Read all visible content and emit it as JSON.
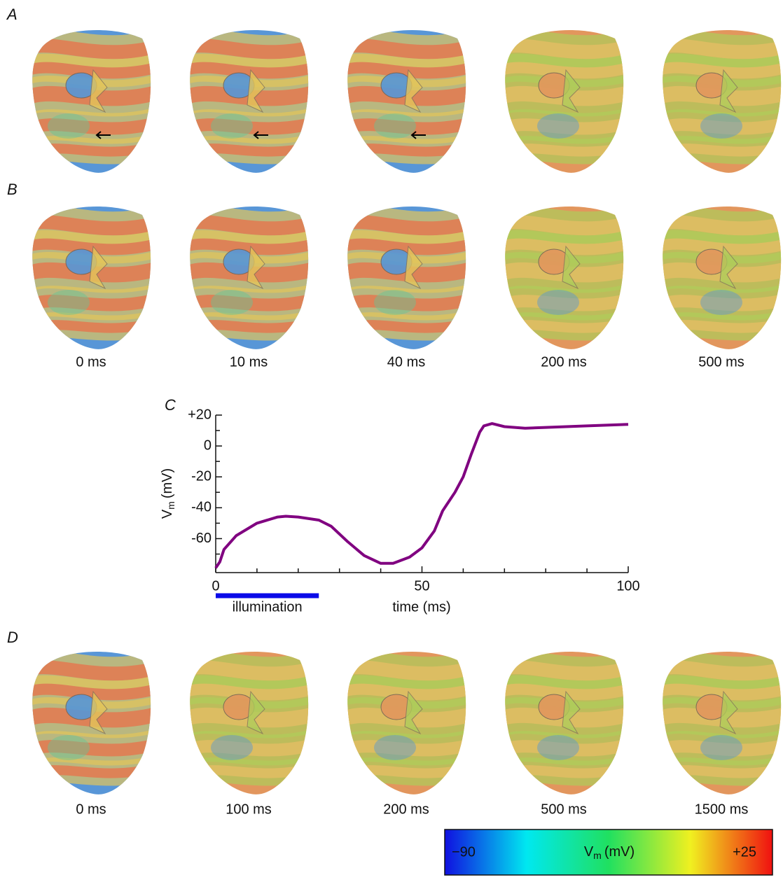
{
  "panels": {
    "A": "A",
    "B": "B",
    "D": "D"
  },
  "times_B": [
    "0 ms",
    "10 ms",
    "40 ms",
    "200 ms",
    "500 ms"
  ],
  "times_D": [
    "0 ms",
    "100 ms",
    "200 ms",
    "500 ms",
    "1500 ms"
  ],
  "colorbar": {
    "min_label": "−90",
    "max_label": "+25",
    "label": "V",
    "label_sub": "m",
    "label_unit": "(mV)",
    "colors": [
      "#1010e0",
      "#00e8f0",
      "#20e060",
      "#f0f020",
      "#f01010"
    ]
  },
  "chart_data": {
    "type": "line",
    "title": "C",
    "ylabel": "V",
    "ylabel_sub": "m",
    "ylabel_unit": "(mV)",
    "xlabel": "time (ms)",
    "x": [
      0,
      1,
      2,
      5,
      10,
      15,
      17,
      20,
      25,
      28,
      32,
      36,
      40,
      43,
      47,
      50,
      53,
      55,
      58,
      60,
      62,
      64,
      65,
      67,
      70,
      75,
      80,
      90,
      100
    ],
    "values": [
      -79,
      -75,
      -67,
      -58,
      -50,
      -46,
      -45.5,
      -46,
      -48,
      -52,
      -62,
      -71,
      -76,
      -76,
      -72,
      -66,
      -55,
      -42,
      -30,
      -20,
      -5,
      9,
      13,
      14.5,
      12.5,
      11.5,
      12,
      13,
      14
    ],
    "color": "#800080",
    "xlim": [
      0,
      100
    ],
    "xticks": [
      0,
      50,
      100
    ],
    "xminorticks": [
      10,
      20,
      30,
      40,
      60,
      70,
      80,
      90
    ],
    "ylim": [
      -82,
      20
    ],
    "yticks": [
      {
        "value": 20,
        "label": "+20"
      },
      0,
      -20,
      -40,
      -60
    ],
    "yminorticks": [
      10,
      -10,
      -30,
      -50,
      -70
    ],
    "illumination": {
      "label": "illumination",
      "xrange": [
        0,
        25
      ],
      "color": "#0a0ae8"
    }
  }
}
